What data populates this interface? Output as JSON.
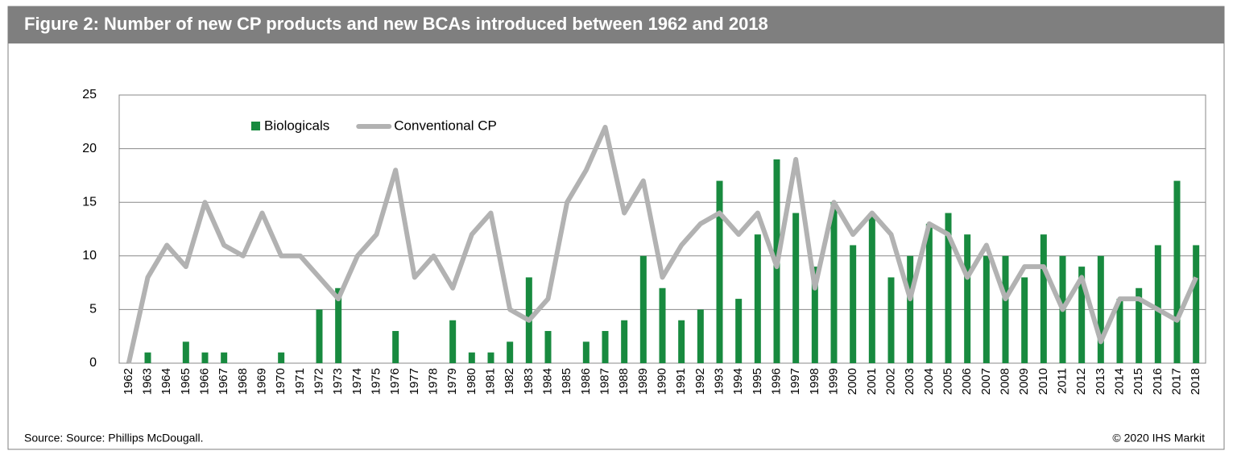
{
  "chart_data": {
    "type": "bar_line",
    "title": "Figure 2:  Number of new CP products and new BCAs introduced between 1962 and 2018",
    "source": "Source: Source: Phillips McDougall.",
    "copyright": "© 2020 IHS Markit",
    "categories": [
      "1962",
      "1963",
      "1964",
      "1965",
      "1966",
      "1967",
      "1968",
      "1969",
      "1970",
      "1971",
      "1972",
      "1973",
      "1974",
      "1975",
      "1976",
      "1977",
      "1978",
      "1979",
      "1980",
      "1981",
      "1982",
      "1983",
      "1984",
      "1985",
      "1986",
      "1987",
      "1988",
      "1989",
      "1990",
      "1991",
      "1992",
      "1993",
      "1994",
      "1995",
      "1996",
      "1997",
      "1998",
      "1999",
      "2000",
      "2001",
      "2002",
      "2003",
      "2004",
      "2005",
      "2006",
      "2007",
      "2008",
      "2009",
      "2010",
      "2011",
      "2012",
      "2013",
      "2014",
      "2015",
      "2016",
      "2017",
      "2018"
    ],
    "series": [
      {
        "name": "Biologicals",
        "type": "bar",
        "color": "#188a3f",
        "values": [
          0,
          1,
          0,
          2,
          1,
          1,
          0,
          0,
          1,
          0,
          5,
          7,
          0,
          0,
          3,
          0,
          0,
          4,
          1,
          1,
          2,
          8,
          3,
          0,
          2,
          3,
          4,
          10,
          7,
          4,
          5,
          17,
          6,
          12,
          19,
          14,
          9,
          15,
          11,
          14,
          8,
          10,
          13,
          14,
          12,
          10,
          10,
          8,
          12,
          10,
          9,
          10,
          6,
          7,
          11,
          17,
          11
        ]
      },
      {
        "name": "Conventional CP",
        "type": "line",
        "color": "#b2b2b2",
        "values": [
          0,
          8,
          11,
          9,
          15,
          11,
          10,
          14,
          10,
          10,
          8,
          6,
          10,
          12,
          18,
          8,
          10,
          7,
          12,
          14,
          5,
          4,
          6,
          15,
          18,
          22,
          14,
          17,
          8,
          11,
          13,
          14,
          12,
          14,
          9,
          19,
          7,
          15,
          12,
          14,
          12,
          6,
          13,
          12,
          8,
          11,
          6,
          9,
          9,
          5,
          8,
          2,
          6,
          6,
          5,
          4,
          8
        ]
      }
    ],
    "ylim": [
      0,
      25
    ],
    "yticks": [
      0,
      5,
      10,
      15,
      20,
      25
    ],
    "grid": true,
    "legend": "top-left"
  }
}
